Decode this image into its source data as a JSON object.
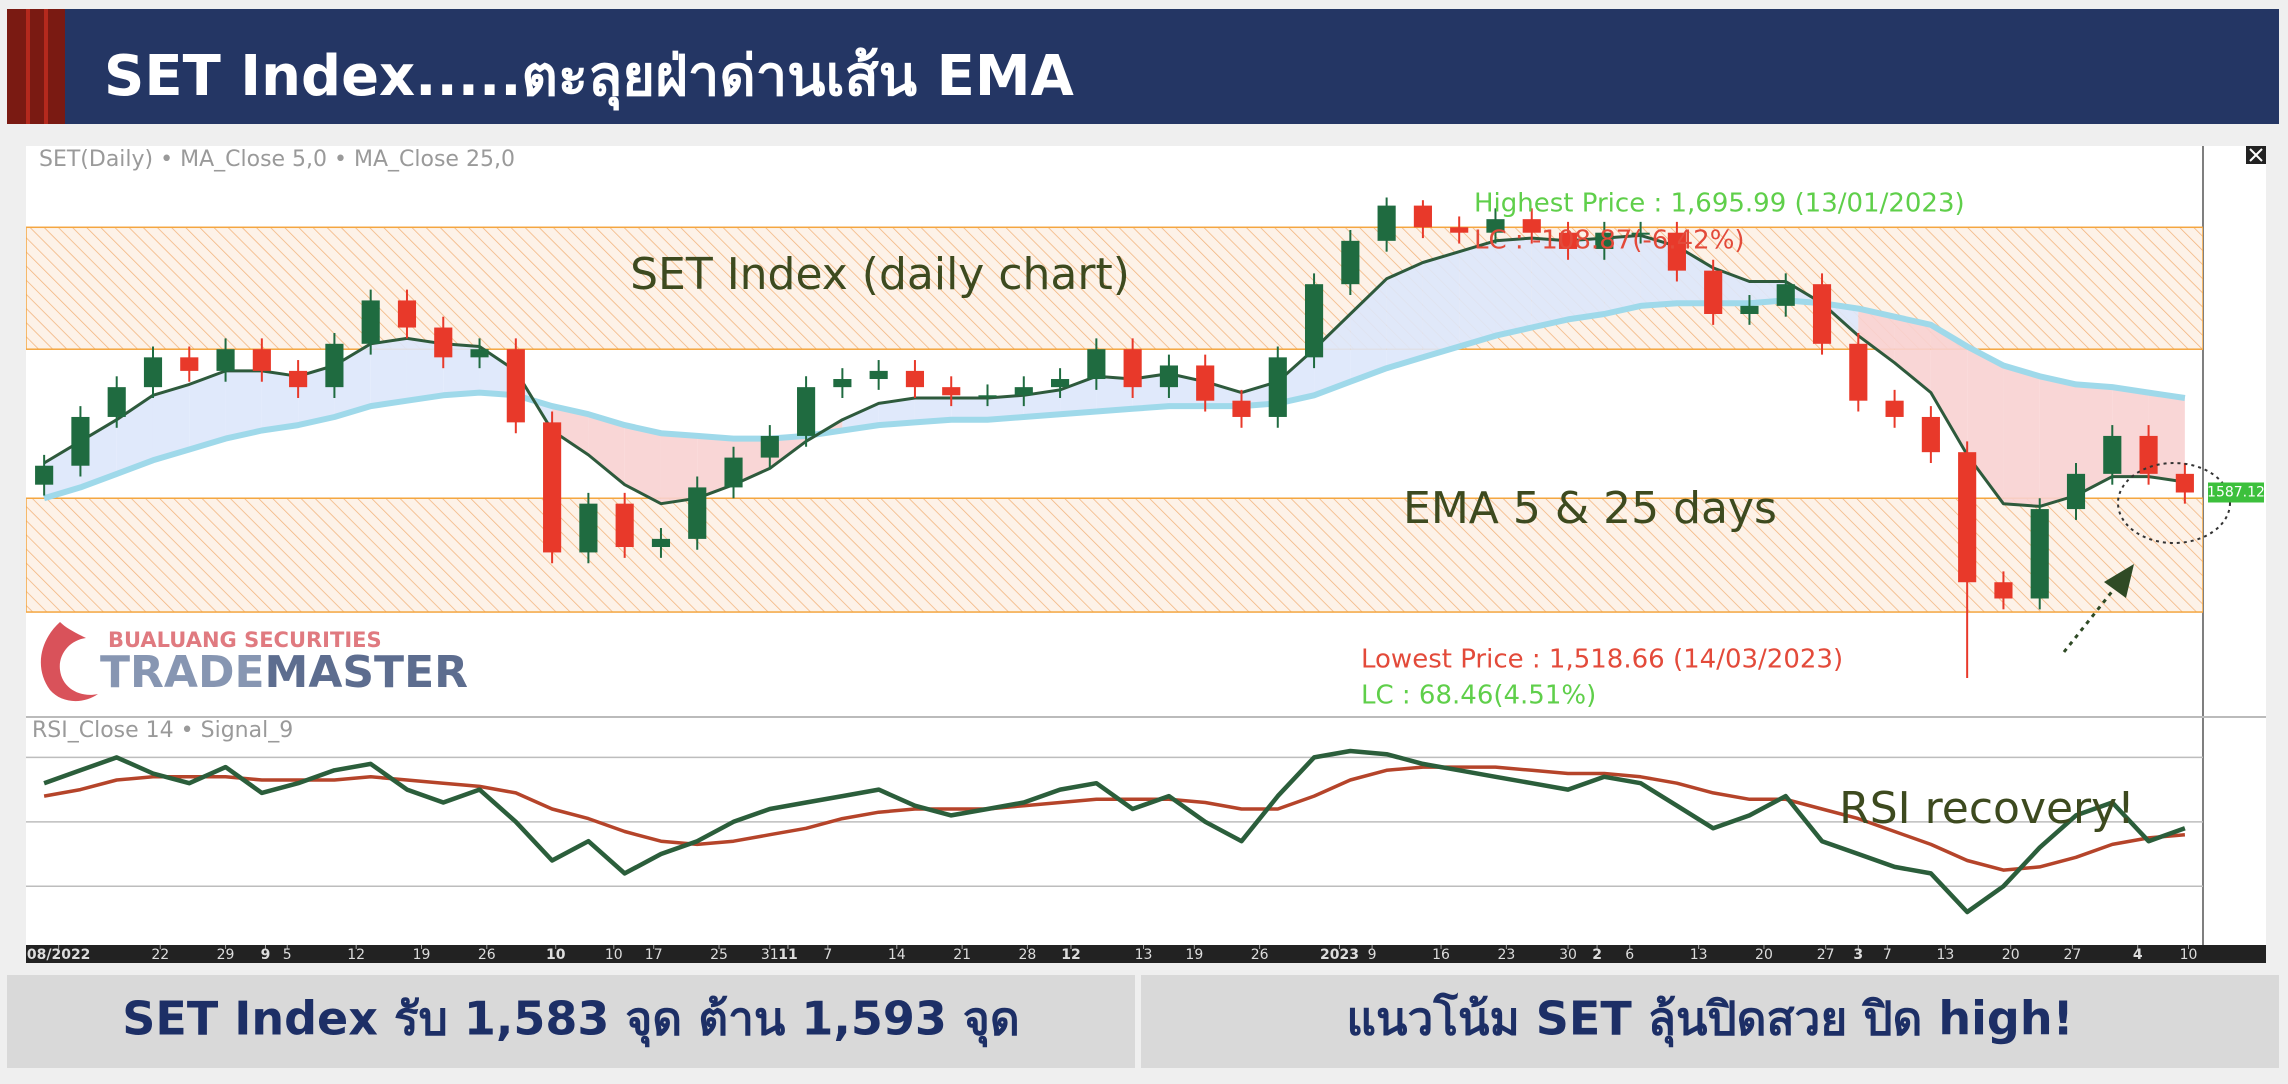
{
  "header": {
    "title": "SET Index.....ตะลุยฝ่าด่านเส้น EMA"
  },
  "chart_data": {
    "type": "candlestick",
    "title": "SET(Daily) • MA_Close 5,0 • MA_Close 25,0",
    "up_color": "#1f6b40",
    "down_color": "#e8392a",
    "ylim": [
      1505,
      1715
    ],
    "bands": [
      [
        1640,
        1685
      ],
      [
        1543,
        1585
      ]
    ],
    "open": [
      1590,
      1597,
      1615,
      1626,
      1637,
      1632,
      1640,
      1632,
      1626,
      1642,
      1658,
      1648,
      1637,
      1640,
      1613,
      1565,
      1583,
      1567,
      1570,
      1589,
      1600,
      1608,
      1626,
      1629,
      1632,
      1626,
      1623,
      1623,
      1626,
      1629,
      1640,
      1626,
      1634,
      1621,
      1615,
      1637,
      1664,
      1680,
      1693,
      1685,
      1683,
      1688,
      1683,
      1677,
      1683,
      1683,
      1669,
      1653,
      1656,
      1664,
      1642,
      1621,
      1615,
      1602,
      1554,
      1548,
      1581,
      1594,
      1608,
      1594
    ],
    "high": [
      1601,
      1619,
      1630,
      1641,
      1641,
      1644,
      1644,
      1636,
      1646,
      1662,
      1662,
      1652,
      1644,
      1644,
      1617,
      1587,
      1587,
      1574,
      1593,
      1604,
      1612,
      1630,
      1633,
      1636,
      1636,
      1630,
      1627,
      1630,
      1633,
      1644,
      1644,
      1638,
      1638,
      1625,
      1641,
      1668,
      1684,
      1695.99,
      1695,
      1689,
      1692,
      1692,
      1687,
      1687,
      1687,
      1687,
      1673,
      1660,
      1668,
      1668,
      1646,
      1625,
      1619,
      1606,
      1558,
      1585,
      1598,
      1612,
      1612,
      1598
    ],
    "low": [
      1586,
      1593,
      1611,
      1622,
      1628,
      1628,
      1628,
      1622,
      1622,
      1638,
      1644,
      1633,
      1633,
      1609,
      1561,
      1561,
      1563,
      1563,
      1566,
      1585,
      1596,
      1604,
      1622,
      1625,
      1622,
      1619,
      1619,
      1619,
      1622,
      1625,
      1622,
      1622,
      1617,
      1611,
      1611,
      1633,
      1660,
      1676,
      1681,
      1679,
      1679,
      1679,
      1673,
      1673,
      1679,
      1665,
      1649,
      1649,
      1652,
      1638,
      1617,
      1611,
      1598,
      1518.66,
      1544,
      1544,
      1577,
      1590,
      1590,
      1583
    ],
    "close": [
      1597,
      1615,
      1626,
      1637,
      1632,
      1640,
      1632,
      1626,
      1642,
      1658,
      1648,
      1637,
      1640,
      1613,
      1565,
      1583,
      1567,
      1570,
      1589,
      1600,
      1608,
      1626,
      1629,
      1632,
      1626,
      1623,
      1623,
      1626,
      1629,
      1640,
      1626,
      1634,
      1621,
      1615,
      1637,
      1664,
      1680,
      1693,
      1685,
      1683,
      1688,
      1683,
      1677,
      1683,
      1683,
      1669,
      1653,
      1656,
      1664,
      1642,
      1621,
      1615,
      1602,
      1554,
      1548,
      1581,
      1594,
      1608,
      1594,
      1587.12
    ],
    "last_price_label": "1587.12",
    "ema5": {
      "color": "#2e5a3c",
      "values": [
        1598,
        1606,
        1614,
        1623,
        1627,
        1632,
        1632,
        1630,
        1634,
        1642,
        1644,
        1642,
        1641,
        1632,
        1610,
        1601,
        1590,
        1583,
        1585,
        1590,
        1596,
        1606,
        1614,
        1620,
        1622,
        1622,
        1622,
        1623,
        1625,
        1630,
        1629,
        1631,
        1628,
        1624,
        1628,
        1640,
        1653,
        1666,
        1672,
        1676,
        1680,
        1681,
        1680,
        1681,
        1682,
        1678,
        1670,
        1665,
        1665,
        1657,
        1645,
        1635,
        1624,
        1601,
        1583,
        1582,
        1586,
        1593,
        1593,
        1591
      ]
    },
    "ema25": {
      "color": "#9fd9ea",
      "values": [
        1585,
        1589,
        1594,
        1599,
        1603,
        1607,
        1610,
        1612,
        1615,
        1619,
        1621,
        1623,
        1624,
        1623,
        1619,
        1616,
        1612,
        1609,
        1608,
        1607,
        1607,
        1608,
        1610,
        1612,
        1613,
        1614,
        1614,
        1615,
        1616,
        1617,
        1618,
        1619,
        1619,
        1619,
        1620,
        1623,
        1628,
        1633,
        1637,
        1641,
        1645,
        1648,
        1651,
        1653,
        1656,
        1657,
        1657,
        1657,
        1658,
        1657,
        1655,
        1652,
        1649,
        1641,
        1634,
        1630,
        1627,
        1626,
        1624,
        1622
      ]
    },
    "fill_above": "#dde7fb",
    "fill_below": "#f8d2d2",
    "annotations": [
      "SET Index (daily chart)",
      "EMA 5 & 25 days",
      "Highest Price : 1,695.99 (13/01/2023)",
      "LC : -108.87(-6.42%)",
      "Lowest Price : 1,518.66 (14/03/2023)",
      "LC : 68.46(4.51%)",
      "RSI recovery!"
    ],
    "xticks": [
      {
        "value": 0.9,
        "label": "08/2022",
        "bold": true
      },
      {
        "value": 3.7,
        "label": "22"
      },
      {
        "value": 5.5,
        "label": "29"
      },
      {
        "value": 6.6,
        "label": "9",
        "bold": true
      },
      {
        "value": 7.2,
        "label": "5"
      },
      {
        "value": 9.1,
        "label": "12"
      },
      {
        "value": 10.9,
        "label": "19"
      },
      {
        "value": 12.7,
        "label": "26"
      },
      {
        "value": 14.6,
        "label": "10",
        "bold": true
      },
      {
        "value": 16.2,
        "label": "10"
      },
      {
        "value": 17.3,
        "label": "17"
      },
      {
        "value": 19.1,
        "label": "25"
      },
      {
        "value": 20.5,
        "label": "31"
      },
      {
        "value": 21.0,
        "label": "11",
        "bold": true
      },
      {
        "value": 22.1,
        "label": "7"
      },
      {
        "value": 24.0,
        "label": "14"
      },
      {
        "value": 25.8,
        "label": "21"
      },
      {
        "value": 27.6,
        "label": "28"
      },
      {
        "value": 28.8,
        "label": "12",
        "bold": true
      },
      {
        "value": 30.8,
        "label": "13"
      },
      {
        "value": 32.2,
        "label": "19"
      },
      {
        "value": 34.0,
        "label": "26"
      },
      {
        "value": 36.2,
        "label": "2023",
        "bold": true
      },
      {
        "value": 37.1,
        "label": "9"
      },
      {
        "value": 39.0,
        "label": "16"
      },
      {
        "value": 40.8,
        "label": "23"
      },
      {
        "value": 42.5,
        "label": "30"
      },
      {
        "value": 43.3,
        "label": "2",
        "bold": true
      },
      {
        "value": 44.2,
        "label": "6"
      },
      {
        "value": 46.1,
        "label": "13"
      },
      {
        "value": 47.9,
        "label": "20"
      },
      {
        "value": 49.6,
        "label": "27"
      },
      {
        "value": 50.5,
        "label": "3",
        "bold": true
      },
      {
        "value": 51.3,
        "label": "7"
      },
      {
        "value": 52.9,
        "label": "13"
      },
      {
        "value": 54.7,
        "label": "20"
      },
      {
        "value": 56.4,
        "label": "27"
      },
      {
        "value": 58.2,
        "label": "4",
        "bold": true
      },
      {
        "value": 59.6,
        "label": "10"
      }
    ],
    "rsi_panel": {
      "title": "RSI_Close 14 • Signal_9",
      "ylim": [
        13,
        81
      ],
      "levels": [
        30,
        50,
        70
      ],
      "rsi": {
        "color": "#2b5e3b",
        "values": [
          62,
          66,
          70,
          65,
          62,
          67,
          59,
          62,
          66,
          68,
          60,
          56,
          60,
          50,
          38,
          44,
          34,
          40,
          44,
          50,
          54,
          56,
          58,
          60,
          55,
          52,
          54,
          56,
          60,
          62,
          54,
          58,
          50,
          44,
          58,
          70,
          72,
          71,
          68,
          66,
          64,
          62,
          60,
          64,
          62,
          55,
          48,
          52,
          58,
          44,
          40,
          36,
          34,
          22,
          30,
          42,
          52,
          56,
          44,
          48
        ]
      },
      "signal": {
        "color": "#b5442a",
        "values": [
          58,
          60,
          63,
          64,
          64,
          64,
          63,
          63,
          63,
          64,
          63,
          62,
          61,
          59,
          54,
          51,
          47,
          44,
          43,
          44,
          46,
          48,
          51,
          53,
          54,
          54,
          54,
          55,
          56,
          57,
          57,
          57,
          56,
          54,
          54,
          58,
          63,
          66,
          67,
          67,
          67,
          66,
          65,
          65,
          64,
          62,
          59,
          57,
          57,
          54,
          51,
          47,
          43,
          38,
          35,
          36,
          39,
          43,
          45,
          46
        ]
      }
    }
  },
  "logo": {
    "company": "BUALUANG SECURITIES",
    "brand_left": "TRADE",
    "brand_right": "MASTER"
  },
  "footer": {
    "left": "SET Index รับ 1,583 จุด ต้าน 1,593 จุด",
    "right": "แนวโน้ม SET ลุ้นปิดสวย ปิด high!"
  }
}
